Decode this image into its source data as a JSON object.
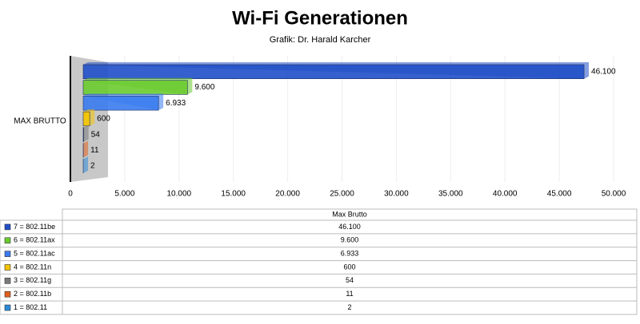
{
  "chart_data": {
    "type": "bar",
    "orientation": "horizontal",
    "title": "Wi-Fi Generationen",
    "subtitle": "Grafik: Dr. Harald Karcher",
    "categories": [
      "MAX BRUTTO"
    ],
    "table_header": "Max Brutto",
    "series": [
      {
        "name": "7 = 802.11be",
        "color": "#1f4fc8",
        "values": [
          46100
        ],
        "value_labels": [
          "46.100"
        ]
      },
      {
        "name": "6 = 802.11ax",
        "color": "#6acb2e",
        "values": [
          9600
        ],
        "value_labels": [
          "9.600"
        ]
      },
      {
        "name": "5 = 802.11ac",
        "color": "#3a7bef",
        "values": [
          6933
        ],
        "value_labels": [
          "6.933"
        ]
      },
      {
        "name": "4 = 802.11n",
        "color": "#f5c400",
        "values": [
          600
        ]
      },
      {
        "name": "3 = 802.11g",
        "color": "#7a7a7a",
        "values": [
          54
        ]
      },
      {
        "name": "2 = 802.11b",
        "color": "#e0601e",
        "values": [
          11
        ]
      },
      {
        "name": "1 = 802.11",
        "color": "#2e8ad8",
        "values": [
          2
        ]
      }
    ],
    "xlim": [
      0,
      50000
    ],
    "xticks": [
      0,
      {
        "value": 5000,
        "label": "5.000"
      },
      {
        "value": 10000,
        "label": "10.000"
      },
      {
        "value": 15000,
        "label": "15.000"
      },
      {
        "value": 20000,
        "label": "20.000"
      },
      {
        "value": 25000,
        "label": "25.000"
      },
      {
        "value": 30000,
        "label": "30.000"
      },
      {
        "value": 35000,
        "label": "35.000"
      },
      {
        "value": 40000,
        "label": "40.000"
      },
      {
        "value": 45000,
        "label": "45.000"
      },
      {
        "value": 50000,
        "label": "50.000"
      }
    ],
    "grid": true
  }
}
